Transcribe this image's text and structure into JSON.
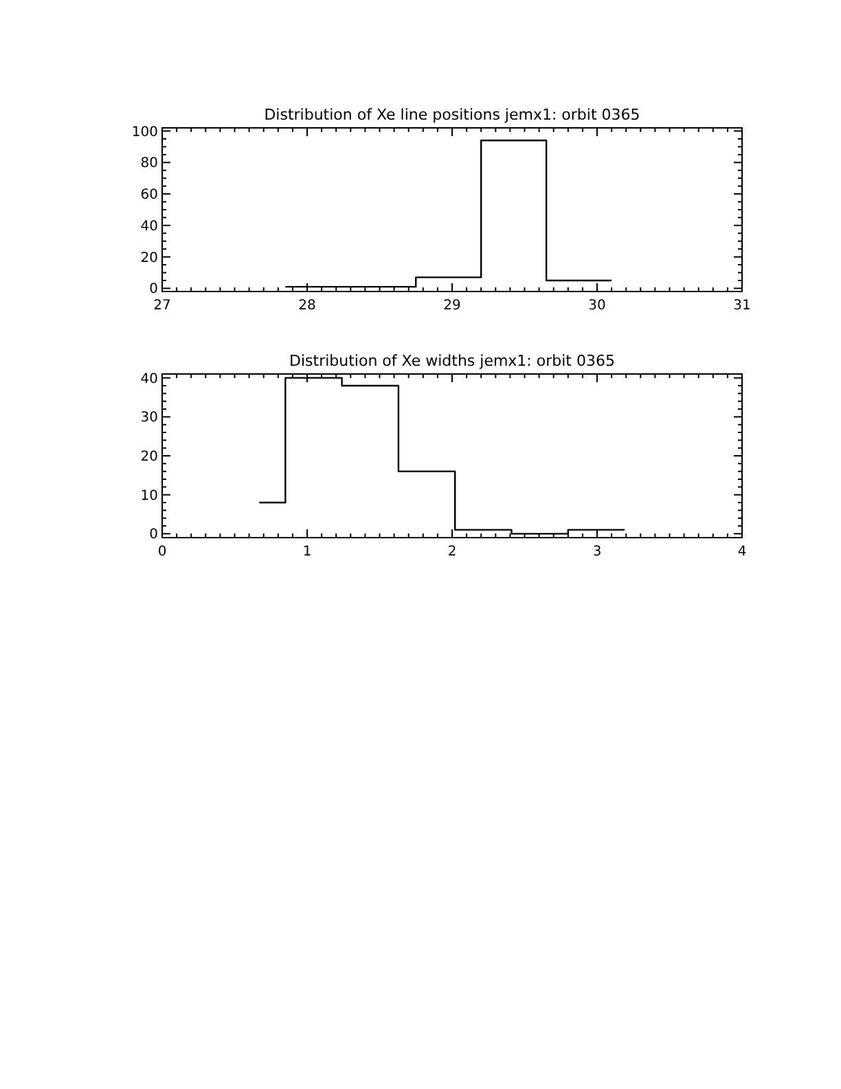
{
  "chart_data": [
    {
      "type": "step",
      "title": "Distribution of Xe line positions jemx1: orbit 0365",
      "x": [
        27.85,
        28.75,
        29.2,
        29.65,
        30.1
      ],
      "values": [
        1,
        7,
        94,
        5,
        5
      ],
      "color": "#000000",
      "xlim": [
        27,
        31
      ],
      "ylim": [
        -2,
        102
      ],
      "xticks": [
        27,
        {
          "value": 27.1,
          "label": null
        },
        {
          "value": 27.2,
          "label": null
        },
        {
          "value": 27.3,
          "label": null
        },
        {
          "value": 27.4,
          "label": null
        },
        {
          "value": 27.5,
          "label": null
        },
        {
          "value": 27.6,
          "label": null
        },
        {
          "value": 27.7,
          "label": null
        },
        {
          "value": 27.8,
          "label": null
        },
        {
          "value": 27.9,
          "label": null
        },
        28,
        {
          "value": 28.1,
          "label": null
        },
        {
          "value": 28.2,
          "label": null
        },
        {
          "value": 28.3,
          "label": null
        },
        {
          "value": 28.4,
          "label": null
        },
        {
          "value": 28.5,
          "label": null
        },
        {
          "value": 28.6,
          "label": null
        },
        {
          "value": 28.7,
          "label": null
        },
        {
          "value": 28.8,
          "label": null
        },
        {
          "value": 28.9,
          "label": null
        },
        29,
        {
          "value": 29.1,
          "label": null
        },
        {
          "value": 29.2,
          "label": null
        },
        {
          "value": 29.3,
          "label": null
        },
        {
          "value": 29.4,
          "label": null
        },
        {
          "value": 29.5,
          "label": null
        },
        {
          "value": 29.6,
          "label": null
        },
        {
          "value": 29.7,
          "label": null
        },
        {
          "value": 29.8,
          "label": null
        },
        {
          "value": 29.9,
          "label": null
        },
        30,
        {
          "value": 30.1,
          "label": null
        },
        {
          "value": 30.2,
          "label": null
        },
        {
          "value": 30.3,
          "label": null
        },
        {
          "value": 30.4,
          "label": null
        },
        {
          "value": 30.5,
          "label": null
        },
        {
          "value": 30.6,
          "label": null
        },
        {
          "value": 30.7,
          "label": null
        },
        {
          "value": 30.8,
          "label": null
        },
        {
          "value": 30.9,
          "label": null
        },
        31
      ],
      "yticks": [
        0,
        {
          "value": 5,
          "label": null
        },
        {
          "value": 10,
          "label": null
        },
        {
          "value": 15,
          "label": null
        },
        20,
        {
          "value": 25,
          "label": null
        },
        {
          "value": 30,
          "label": null
        },
        {
          "value": 35,
          "label": null
        },
        40,
        {
          "value": 45,
          "label": null
        },
        {
          "value": 50,
          "label": null
        },
        {
          "value": 55,
          "label": null
        },
        60,
        {
          "value": 65,
          "label": null
        },
        {
          "value": 70,
          "label": null
        },
        {
          "value": 75,
          "label": null
        },
        80,
        {
          "value": 85,
          "label": null
        },
        {
          "value": 90,
          "label": null
        },
        {
          "value": 95,
          "label": null
        },
        100
      ]
    },
    {
      "type": "step",
      "title": "Distribution of Xe widths jemx1: orbit 0365",
      "x": [
        0.67,
        0.85,
        1.24,
        1.63,
        2.02,
        2.41,
        2.8,
        3.19
      ],
      "values": [
        8,
        40,
        38,
        16,
        1,
        0,
        1,
        1
      ],
      "color": "#000000",
      "xlim": [
        0,
        4
      ],
      "ylim": [
        -1,
        41
      ],
      "xticks": [
        0,
        {
          "value": 0.1,
          "label": null
        },
        {
          "value": 0.2,
          "label": null
        },
        {
          "value": 0.3,
          "label": null
        },
        {
          "value": 0.4,
          "label": null
        },
        {
          "value": 0.5,
          "label": null
        },
        {
          "value": 0.6,
          "label": null
        },
        {
          "value": 0.7,
          "label": null
        },
        {
          "value": 0.8,
          "label": null
        },
        {
          "value": 0.9,
          "label": null
        },
        1,
        {
          "value": 1.1,
          "label": null
        },
        {
          "value": 1.2,
          "label": null
        },
        {
          "value": 1.3,
          "label": null
        },
        {
          "value": 1.4,
          "label": null
        },
        {
          "value": 1.5,
          "label": null
        },
        {
          "value": 1.6,
          "label": null
        },
        {
          "value": 1.7,
          "label": null
        },
        {
          "value": 1.8,
          "label": null
        },
        {
          "value": 1.9,
          "label": null
        },
        2,
        {
          "value": 2.1,
          "label": null
        },
        {
          "value": 2.2,
          "label": null
        },
        {
          "value": 2.3,
          "label": null
        },
        {
          "value": 2.4,
          "label": null
        },
        {
          "value": 2.5,
          "label": null
        },
        {
          "value": 2.6,
          "label": null
        },
        {
          "value": 2.7,
          "label": null
        },
        {
          "value": 2.8,
          "label": null
        },
        {
          "value": 2.9,
          "label": null
        },
        3,
        {
          "value": 3.1,
          "label": null
        },
        {
          "value": 3.2,
          "label": null
        },
        {
          "value": 3.3,
          "label": null
        },
        {
          "value": 3.4,
          "label": null
        },
        {
          "value": 3.5,
          "label": null
        },
        {
          "value": 3.6,
          "label": null
        },
        {
          "value": 3.7,
          "label": null
        },
        {
          "value": 3.8,
          "label": null
        },
        {
          "value": 3.9,
          "label": null
        },
        4
      ],
      "yticks": [
        0,
        {
          "value": 2,
          "label": null
        },
        {
          "value": 4,
          "label": null
        },
        {
          "value": 6,
          "label": null
        },
        {
          "value": 8,
          "label": null
        },
        10,
        {
          "value": 12,
          "label": null
        },
        {
          "value": 14,
          "label": null
        },
        {
          "value": 16,
          "label": null
        },
        {
          "value": 18,
          "label": null
        },
        20,
        {
          "value": 22,
          "label": null
        },
        {
          "value": 24,
          "label": null
        },
        {
          "value": 26,
          "label": null
        },
        {
          "value": 28,
          "label": null
        },
        30,
        {
          "value": 32,
          "label": null
        },
        {
          "value": 34,
          "label": null
        },
        {
          "value": 36,
          "label": null
        },
        {
          "value": 38,
          "label": null
        },
        40
      ]
    }
  ]
}
